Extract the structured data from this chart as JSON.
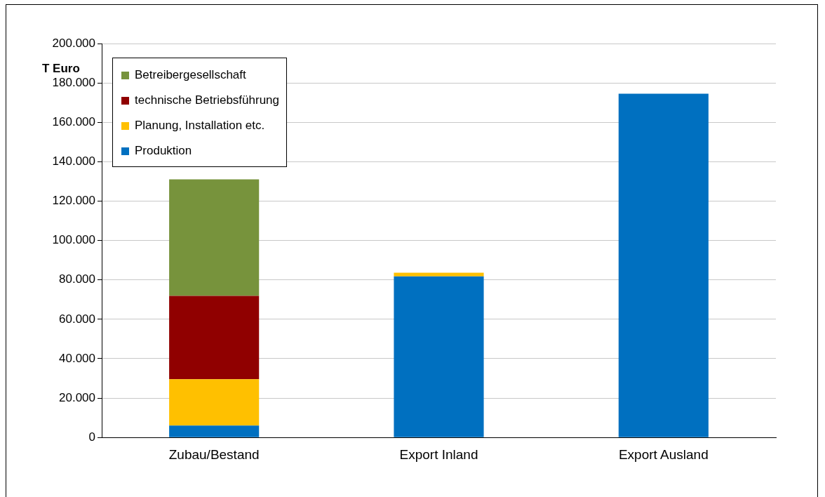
{
  "chart_data": {
    "type": "bar",
    "stacked": true,
    "ylabel": "T Euro",
    "categories": [
      "Zubau/Bestand",
      "Export Inland",
      "Export Ausland"
    ],
    "series": [
      {
        "name": "Produktion",
        "color": "#0070c0",
        "values": [
          6000,
          81800,
          174500
        ]
      },
      {
        "name": "Planung, Installation etc.",
        "color": "#ffc000",
        "values": [
          23600,
          1800,
          0
        ]
      },
      {
        "name": "technische Betriebsführung",
        "color": "#900000",
        "values": [
          42300,
          0,
          0
        ]
      },
      {
        "name": "Betreibergesellschaft",
        "color": "#77933c",
        "values": [
          59100,
          0,
          0
        ]
      }
    ],
    "ylim": [
      0,
      200000
    ],
    "yticks": [
      {
        "value": 0,
        "label": "0"
      },
      {
        "value": 20000,
        "label": "20.000"
      },
      {
        "value": 40000,
        "label": "40.000"
      },
      {
        "value": 60000,
        "label": "60.000"
      },
      {
        "value": 80000,
        "label": "80.000"
      },
      {
        "value": 100000,
        "label": "100.000"
      },
      {
        "value": 120000,
        "label": "120.000"
      },
      {
        "value": 140000,
        "label": "140.000"
      },
      {
        "value": 160000,
        "label": "160.000"
      },
      {
        "value": 180000,
        "label": "180.000"
      },
      {
        "value": 200000,
        "label": "200.000"
      }
    ],
    "grid": "y",
    "legend": "top left"
  }
}
